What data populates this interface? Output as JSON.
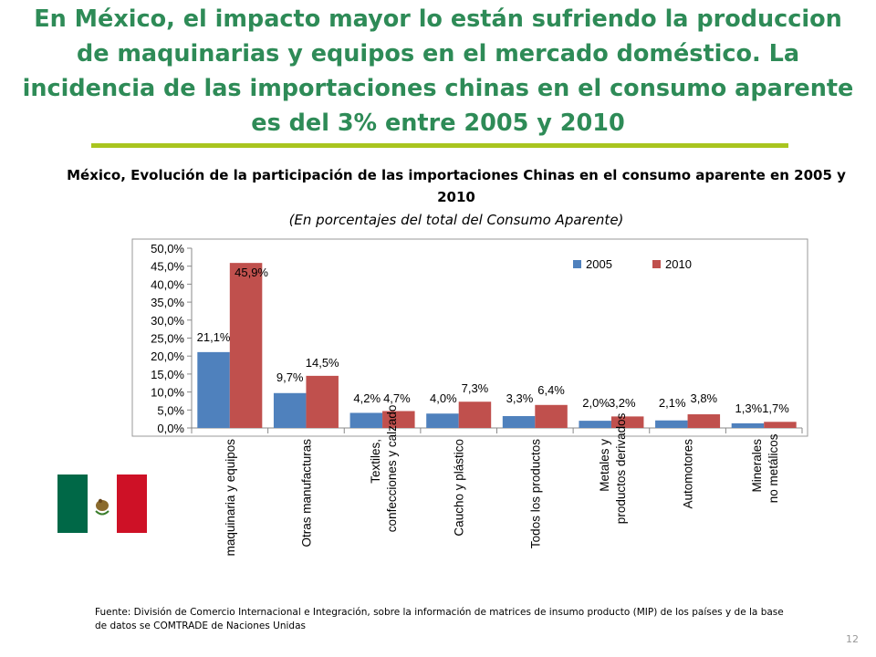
{
  "slide": {
    "title": "En México,  el impacto mayor lo están sufriendo la produccion de maquinarias y equipos en el mercado doméstico. La incidencia de las importaciones  chinas en el consumo aparente es del 3% entre 2005 y 2010",
    "source": "Fuente: División de Comercio Internacional e Integración, sobre la información de matrices de insumo producto (MIP) de los países y de la base de datos se COMTRADE de Naciones Unidas",
    "page_number": "12"
  },
  "colors": {
    "title": "#2e8b57",
    "rule": "#a9c51f",
    "series_2005": "#4f81bd",
    "series_2010": "#c0504d",
    "flag_green": "#006847",
    "flag_red": "#ce1126"
  },
  "chart_data": {
    "type": "bar",
    "title": "México, Evolución de la participación de las importaciones Chinas en el consumo aparente en 2005 y 2010",
    "subtitle": "(En porcentajes del total del Consumo Aparente)",
    "categories": [
      "maquinaria y equipos",
      "Otras manufacturas",
      "Textiles, confecciones y calzado",
      "Caucho y plástico",
      "Todos los productos",
      "Metales y productos derivados",
      "Automotores",
      "Minerales no metálicos"
    ],
    "series": [
      {
        "name": "2005",
        "values": [
          21.1,
          9.7,
          4.2,
          4.0,
          3.3,
          2.0,
          2.1,
          1.3
        ],
        "labels": [
          "21,1%",
          "9,7%",
          "4,2%",
          "4,0%",
          "3,3%",
          "2,0%",
          "2,1%",
          "1,3%"
        ]
      },
      {
        "name": "2010",
        "values": [
          45.9,
          14.5,
          4.7,
          7.3,
          6.4,
          3.2,
          3.8,
          1.7
        ],
        "labels": [
          "45,9%",
          "14,5%",
          "4,7%",
          "7,3%",
          "6,4%",
          "3,2%",
          "3,8%",
          "1,7%"
        ]
      }
    ],
    "ylim": [
      0,
      50
    ],
    "yticks": [
      "0,0%",
      "5,0%",
      "10,0%",
      "15,0%",
      "20,0%",
      "25,0%",
      "30,0%",
      "35,0%",
      "40,0%",
      "45,0%",
      "50,0%"
    ],
    "legend_position": "top-right",
    "grid": false
  }
}
